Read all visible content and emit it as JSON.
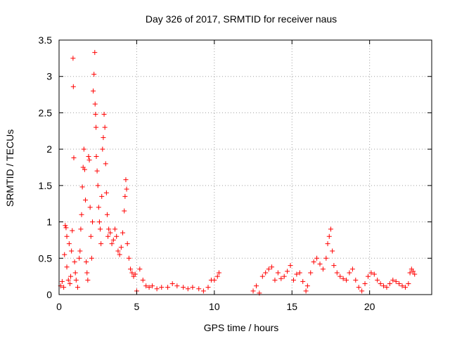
{
  "chart_data": {
    "type": "scatter",
    "title": "Day 326 of 2017, SRMTID for receiver naus",
    "xlabel": "GPS time / hours",
    "ylabel": "SRMTID / TECUs",
    "xlim": [
      0,
      24
    ],
    "ylim": [
      0,
      3.5
    ],
    "xticks": [
      0,
      5,
      10,
      15,
      20
    ],
    "yticks": [
      0,
      0.5,
      1,
      1.5,
      2,
      2.5,
      3,
      3.5
    ],
    "xtick_labels": [
      "0",
      "5",
      "10",
      "15",
      "20"
    ],
    "ytick_labels": [
      "0",
      "0.5",
      "1",
      "1.5",
      "2",
      "2.5",
      "3",
      "3.5"
    ],
    "grid": true,
    "marker": "+",
    "marker_color": "#ff0000",
    "points": [
      [
        0.1,
        0.12
      ],
      [
        0.2,
        0.18
      ],
      [
        0.3,
        0.1
      ],
      [
        0.35,
        0.55
      ],
      [
        0.4,
        0.95
      ],
      [
        0.45,
        0.92
      ],
      [
        0.5,
        0.8
      ],
      [
        0.5,
        0.38
      ],
      [
        0.6,
        0.2
      ],
      [
        0.65,
        0.7
      ],
      [
        0.7,
        0.15
      ],
      [
        0.75,
        0.25
      ],
      [
        0.8,
        0.6
      ],
      [
        0.85,
        0.88
      ],
      [
        0.9,
        3.25
      ],
      [
        0.92,
        2.86
      ],
      [
        0.95,
        1.88
      ],
      [
        1.0,
        0.45
      ],
      [
        1.05,
        0.3
      ],
      [
        1.1,
        0.2
      ],
      [
        1.2,
        0.1
      ],
      [
        1.3,
        0.5
      ],
      [
        1.35,
        0.6
      ],
      [
        1.4,
        0.9
      ],
      [
        1.45,
        1.1
      ],
      [
        1.5,
        1.48
      ],
      [
        1.55,
        1.75
      ],
      [
        1.6,
        2.0
      ],
      [
        1.65,
        1.72
      ],
      [
        1.7,
        1.3
      ],
      [
        1.75,
        0.45
      ],
      [
        1.8,
        0.3
      ],
      [
        1.85,
        0.2
      ],
      [
        1.9,
        1.9
      ],
      [
        1.95,
        1.85
      ],
      [
        2.0,
        1.2
      ],
      [
        2.05,
        0.8
      ],
      [
        2.1,
        0.5
      ],
      [
        2.15,
        1.0
      ],
      [
        2.2,
        2.8
      ],
      [
        2.25,
        3.03
      ],
      [
        2.3,
        3.33
      ],
      [
        2.32,
        2.62
      ],
      [
        2.35,
        2.48
      ],
      [
        2.38,
        2.3
      ],
      [
        2.4,
        1.9
      ],
      [
        2.45,
        1.7
      ],
      [
        2.5,
        1.5
      ],
      [
        2.55,
        1.2
      ],
      [
        2.6,
        1.0
      ],
      [
        2.65,
        0.9
      ],
      [
        2.7,
        0.7
      ],
      [
        2.75,
        1.35
      ],
      [
        2.8,
        2.0
      ],
      [
        2.85,
        2.16
      ],
      [
        2.9,
        2.48
      ],
      [
        2.95,
        2.3
      ],
      [
        3.0,
        1.8
      ],
      [
        3.05,
        1.4
      ],
      [
        3.1,
        1.1
      ],
      [
        3.15,
        0.8
      ],
      [
        3.2,
        0.9
      ],
      [
        3.3,
        0.85
      ],
      [
        3.4,
        0.7
      ],
      [
        3.5,
        0.75
      ],
      [
        3.6,
        0.9
      ],
      [
        3.7,
        0.8
      ],
      [
        3.8,
        0.6
      ],
      [
        3.9,
        0.55
      ],
      [
        4.0,
        0.65
      ],
      [
        4.1,
        0.85
      ],
      [
        4.2,
        1.15
      ],
      [
        4.25,
        1.35
      ],
      [
        4.3,
        1.58
      ],
      [
        4.35,
        1.45
      ],
      [
        4.4,
        0.7
      ],
      [
        4.5,
        0.5
      ],
      [
        4.6,
        0.35
      ],
      [
        4.7,
        0.3
      ],
      [
        4.8,
        0.25
      ],
      [
        4.9,
        0.28
      ],
      [
        5.0,
        0.05
      ],
      [
        5.2,
        0.35
      ],
      [
        5.4,
        0.2
      ],
      [
        5.6,
        0.12
      ],
      [
        5.8,
        0.1
      ],
      [
        6.0,
        0.12
      ],
      [
        6.3,
        0.08
      ],
      [
        6.6,
        0.1
      ],
      [
        7.0,
        0.1
      ],
      [
        7.3,
        0.15
      ],
      [
        7.6,
        0.12
      ],
      [
        8.0,
        0.1
      ],
      [
        8.3,
        0.08
      ],
      [
        8.6,
        0.1
      ],
      [
        9.0,
        0.08
      ],
      [
        9.3,
        0.05
      ],
      [
        9.6,
        0.1
      ],
      [
        9.8,
        0.2
      ],
      [
        10.0,
        0.2
      ],
      [
        10.2,
        0.25
      ],
      [
        10.3,
        0.3
      ],
      [
        12.5,
        0.05
      ],
      [
        12.7,
        0.12
      ],
      [
        12.9,
        0.02
      ],
      [
        13.1,
        0.25
      ],
      [
        13.3,
        0.3
      ],
      [
        13.5,
        0.35
      ],
      [
        13.7,
        0.38
      ],
      [
        13.9,
        0.2
      ],
      [
        14.1,
        0.3
      ],
      [
        14.3,
        0.22
      ],
      [
        14.5,
        0.25
      ],
      [
        14.7,
        0.32
      ],
      [
        14.9,
        0.4
      ],
      [
        15.1,
        0.2
      ],
      [
        15.3,
        0.28
      ],
      [
        15.5,
        0.3
      ],
      [
        15.7,
        0.18
      ],
      [
        15.9,
        0.05
      ],
      [
        16.0,
        0.12
      ],
      [
        16.2,
        0.3
      ],
      [
        16.4,
        0.45
      ],
      [
        16.6,
        0.5
      ],
      [
        16.8,
        0.42
      ],
      [
        17.0,
        0.35
      ],
      [
        17.2,
        0.5
      ],
      [
        17.3,
        0.7
      ],
      [
        17.4,
        0.8
      ],
      [
        17.5,
        0.9
      ],
      [
        17.6,
        0.6
      ],
      [
        17.7,
        0.4
      ],
      [
        17.9,
        0.3
      ],
      [
        18.1,
        0.25
      ],
      [
        18.3,
        0.22
      ],
      [
        18.5,
        0.2
      ],
      [
        18.7,
        0.3
      ],
      [
        18.9,
        0.35
      ],
      [
        19.1,
        0.2
      ],
      [
        19.3,
        0.1
      ],
      [
        19.5,
        0.05
      ],
      [
        19.7,
        0.15
      ],
      [
        19.9,
        0.25
      ],
      [
        20.1,
        0.3
      ],
      [
        20.3,
        0.28
      ],
      [
        20.5,
        0.2
      ],
      [
        20.7,
        0.15
      ],
      [
        20.9,
        0.12
      ],
      [
        21.1,
        0.1
      ],
      [
        21.3,
        0.15
      ],
      [
        21.5,
        0.2
      ],
      [
        21.7,
        0.18
      ],
      [
        21.9,
        0.15
      ],
      [
        22.1,
        0.12
      ],
      [
        22.3,
        0.1
      ],
      [
        22.5,
        0.15
      ],
      [
        22.6,
        0.3
      ],
      [
        22.7,
        0.35
      ],
      [
        22.8,
        0.32
      ],
      [
        22.9,
        0.28
      ]
    ]
  }
}
